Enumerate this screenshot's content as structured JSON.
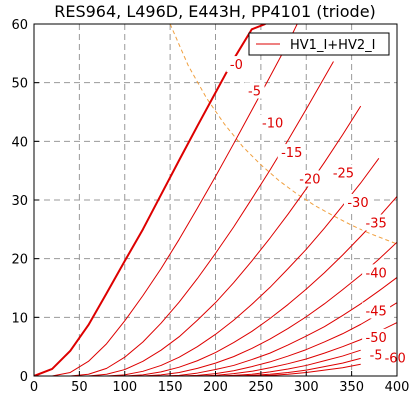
{
  "chart_data": {
    "type": "line",
    "title": "RES964, L496D, E443H, PP4101 (triode)",
    "xlabel": "",
    "ylabel": "",
    "xlim": [
      0,
      400
    ],
    "ylim": [
      0,
      60
    ],
    "x_ticks": [
      0,
      50,
      100,
      150,
      200,
      250,
      300,
      350,
      400
    ],
    "y_ticks": [
      0,
      10,
      20,
      30,
      40,
      50,
      60
    ],
    "grid": true,
    "legend": {
      "position": "top-right",
      "entries": [
        "HV1_I+HV2_I"
      ]
    },
    "colors": {
      "curves": "#dd0000",
      "dissipation": "#f0a040",
      "grid": "#999999"
    },
    "dissipation_curve": {
      "style": "dashed",
      "x": [
        150,
        170,
        190,
        210,
        230,
        250,
        270,
        290,
        310,
        330,
        350,
        370,
        390,
        400
      ],
      "y": [
        60,
        52.9,
        47.4,
        42.9,
        39.1,
        36,
        33.3,
        31,
        29,
        27.3,
        25.7,
        24.3,
        23.1,
        22.5
      ]
    },
    "series": [
      {
        "label": "0",
        "width": 2,
        "x": [
          0,
          20,
          40,
          60,
          80,
          100,
          120,
          140,
          160,
          180,
          200,
          220,
          240,
          255
        ],
        "y": [
          0,
          1.2,
          4.3,
          8.7,
          14.1,
          19.6,
          25.0,
          30.9,
          36.8,
          42.6,
          48.3,
          54.0,
          59.1,
          60
        ]
      },
      {
        "label": "-5",
        "x": [
          20,
          40,
          60,
          80,
          100,
          120,
          140,
          160,
          180,
          200,
          220,
          240,
          260,
          280,
          290
        ],
        "y": [
          0,
          0.6,
          2.5,
          5.5,
          9.4,
          13.7,
          18.3,
          23.3,
          28.6,
          34.0,
          39.6,
          45.3,
          51.0,
          56.8,
          60
        ]
      },
      {
        "label": "-10",
        "x": [
          40,
          60,
          80,
          100,
          120,
          140,
          160,
          180,
          200,
          220,
          240,
          260,
          280,
          300,
          320,
          330
        ],
        "y": [
          0,
          0.3,
          1.3,
          3.2,
          5.8,
          9.0,
          12.6,
          16.6,
          20.9,
          25.4,
          30.2,
          35.1,
          40.2,
          45.5,
          50.9,
          53.6
        ]
      },
      {
        "label": "-15",
        "x": [
          60,
          80,
          100,
          120,
          140,
          160,
          180,
          200,
          220,
          240,
          260,
          280,
          300,
          320,
          340,
          360
        ],
        "y": [
          0,
          0.3,
          1.1,
          2.5,
          4.4,
          6.7,
          9.5,
          12.5,
          15.9,
          19.6,
          23.5,
          27.6,
          31.9,
          36.4,
          41.1,
          46.0
        ]
      },
      {
        "label": "-20",
        "x": [
          80,
          100,
          120,
          140,
          160,
          180,
          200,
          220,
          240,
          260,
          280,
          300,
          320,
          340,
          360,
          380
        ],
        "y": [
          0,
          0.2,
          0.8,
          1.8,
          3.2,
          5.0,
          7.1,
          9.5,
          12.2,
          15.1,
          18.3,
          21.6,
          25.2,
          29.0,
          32.9,
          37.1
        ]
      },
      {
        "label": "-25",
        "x": [
          100,
          120,
          140,
          160,
          180,
          200,
          220,
          240,
          260,
          280,
          300,
          320,
          340,
          360,
          380,
          400
        ],
        "y": [
          0,
          0.2,
          0.7,
          1.5,
          2.6,
          4.0,
          5.7,
          7.6,
          9.8,
          12.2,
          14.8,
          17.6,
          20.6,
          23.8,
          27.1,
          30.6
        ]
      },
      {
        "label": "-30",
        "x": [
          120,
          140,
          160,
          180,
          200,
          220,
          240,
          260,
          280,
          300,
          320,
          340,
          360,
          380,
          400
        ],
        "y": [
          0,
          0.2,
          0.6,
          1.3,
          2.2,
          3.3,
          4.7,
          6.3,
          8.1,
          10.1,
          12.3,
          14.7,
          17.2,
          19.9,
          22.8
        ]
      },
      {
        "label": "-35",
        "x": [
          140,
          160,
          180,
          200,
          220,
          240,
          260,
          280,
          300,
          320,
          340,
          360,
          380,
          400
        ],
        "y": [
          0,
          0.1,
          0.5,
          1.1,
          1.8,
          2.8,
          3.9,
          5.3,
          6.8,
          8.4,
          10.3,
          12.3,
          14.5,
          16.8
        ]
      },
      {
        "label": "-40",
        "x": [
          160,
          180,
          200,
          220,
          240,
          260,
          280,
          300,
          320,
          340,
          360,
          380,
          400
        ],
        "y": [
          0,
          0.1,
          0.4,
          0.9,
          1.6,
          2.4,
          3.4,
          4.5,
          5.8,
          7.2,
          8.8,
          10.6,
          12.5
        ]
      },
      {
        "label": "-45",
        "x": [
          180,
          200,
          220,
          240,
          260,
          280,
          300,
          320,
          340,
          360,
          380,
          400
        ],
        "y": [
          0,
          0.1,
          0.4,
          0.8,
          1.4,
          2.1,
          2.9,
          3.9,
          5.0,
          6.2,
          7.6,
          9.1
        ]
      },
      {
        "label": "-50",
        "x": [
          200,
          220,
          240,
          260,
          280,
          300,
          320,
          340,
          360
        ],
        "y": [
          0,
          0.1,
          0.3,
          0.7,
          1.2,
          1.8,
          2.6,
          3.4,
          4.4
        ]
      },
      {
        "label": "-5",
        "x": [
          220,
          240,
          260,
          280,
          300,
          320,
          340,
          360
        ],
        "y": [
          0,
          0.1,
          0.3,
          0.6,
          1.0,
          1.6,
          2.2,
          3.0
        ]
      },
      {
        "label": "-60",
        "x": [
          240,
          260,
          280,
          300,
          320,
          340,
          360
        ],
        "y": [
          0,
          0.1,
          0.3,
          0.6,
          1.0,
          1.4,
          2.0
        ]
      }
    ],
    "curve_labels": [
      {
        "text": "-0",
        "x": 223,
        "y": 53
      },
      {
        "text": "-5",
        "x": 243,
        "y": 48.5
      },
      {
        "text": "-10",
        "x": 263,
        "y": 43
      },
      {
        "text": "-15",
        "x": 284,
        "y": 38
      },
      {
        "text": "-20",
        "x": 304,
        "y": 33.5
      },
      {
        "text": "-25",
        "x": 341,
        "y": 34.5
      },
      {
        "text": "-30",
        "x": 357,
        "y": 29.5
      },
      {
        "text": "-35",
        "x": 377,
        "y": 26
      },
      {
        "text": "-40",
        "x": 377,
        "y": 17.5
      },
      {
        "text": "-45",
        "x": 377,
        "y": 11
      },
      {
        "text": "-50",
        "x": 377,
        "y": 6.5
      },
      {
        "text": "-5",
        "x": 377,
        "y": 3.5
      },
      {
        "text": "-60",
        "x": 398,
        "y": 3.0
      }
    ]
  }
}
